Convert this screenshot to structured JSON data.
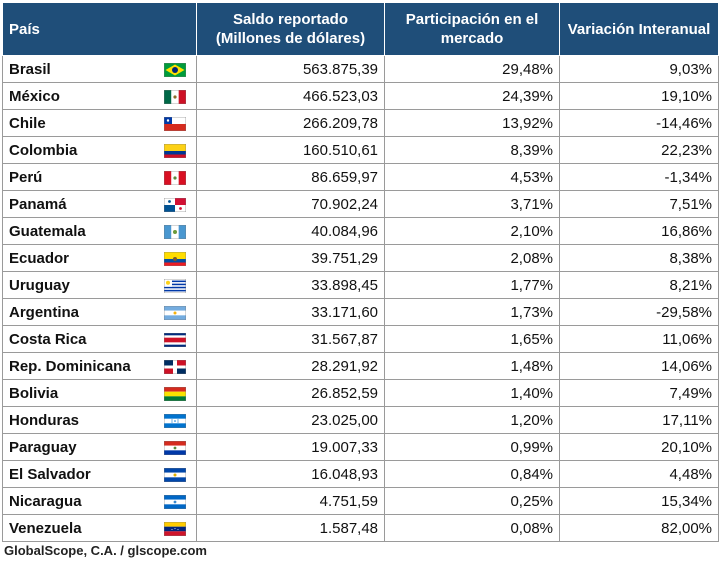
{
  "table": {
    "headers": {
      "country": "País",
      "saldo": "Saldo reportado (Millones de dólares)",
      "participacion": "Participación en el mercado",
      "variacion": "Variación Interanual"
    },
    "rows": [
      {
        "country": "Brasil",
        "flag": "brazil-flag-icon",
        "saldo": "563.875,39",
        "participacion": "29,48%",
        "variacion": "9,03%"
      },
      {
        "country": "México",
        "flag": "mexico-flag-icon",
        "saldo": "466.523,03",
        "participacion": "24,39%",
        "variacion": "19,10%"
      },
      {
        "country": "Chile",
        "flag": "chile-flag-icon",
        "saldo": "266.209,78",
        "participacion": "13,92%",
        "variacion": "-14,46%"
      },
      {
        "country": "Colombia",
        "flag": "colombia-flag-icon",
        "saldo": "160.510,61",
        "participacion": "8,39%",
        "variacion": "22,23%"
      },
      {
        "country": "Perú",
        "flag": "peru-flag-icon",
        "saldo": "86.659,97",
        "participacion": "4,53%",
        "variacion": "-1,34%"
      },
      {
        "country": "Panamá",
        "flag": "panama-flag-icon",
        "saldo": "70.902,24",
        "participacion": "3,71%",
        "variacion": "7,51%"
      },
      {
        "country": "Guatemala",
        "flag": "guatemala-flag-icon",
        "saldo": "40.084,96",
        "participacion": "2,10%",
        "variacion": "16,86%"
      },
      {
        "country": "Ecuador",
        "flag": "ecuador-flag-icon",
        "saldo": "39.751,29",
        "participacion": "2,08%",
        "variacion": "8,38%"
      },
      {
        "country": "Uruguay",
        "flag": "uruguay-flag-icon",
        "saldo": "33.898,45",
        "participacion": "1,77%",
        "variacion": "8,21%"
      },
      {
        "country": "Argentina",
        "flag": "argentina-flag-icon",
        "saldo": "33.171,60",
        "participacion": "1,73%",
        "variacion": "-29,58%"
      },
      {
        "country": "Costa Rica",
        "flag": "costa-rica-flag-icon",
        "saldo": "31.567,87",
        "participacion": "1,65%",
        "variacion": "11,06%"
      },
      {
        "country": "Rep. Dominicana",
        "flag": "dominican-republic-flag-icon",
        "saldo": "28.291,92",
        "participacion": "1,48%",
        "variacion": "14,06%"
      },
      {
        "country": "Bolivia",
        "flag": "bolivia-flag-icon",
        "saldo": "26.852,59",
        "participacion": "1,40%",
        "variacion": "7,49%"
      },
      {
        "country": "Honduras",
        "flag": "honduras-flag-icon",
        "saldo": "23.025,00",
        "participacion": "1,20%",
        "variacion": "17,11%"
      },
      {
        "country": "Paraguay",
        "flag": "paraguay-flag-icon",
        "saldo": "19.007,33",
        "participacion": "0,99%",
        "variacion": "20,10%"
      },
      {
        "country": "El Salvador",
        "flag": "el-salvador-flag-icon",
        "saldo": "16.048,93",
        "participacion": "0,84%",
        "variacion": "4,48%"
      },
      {
        "country": "Nicaragua",
        "flag": "nicaragua-flag-icon",
        "saldo": "4.751,59",
        "participacion": "0,25%",
        "variacion": "15,34%"
      },
      {
        "country": "Venezuela",
        "flag": "venezuela-flag-icon",
        "saldo": "1.587,48",
        "participacion": "0,08%",
        "variacion": "82,00%"
      }
    ]
  },
  "footer": {
    "source": "GlobalScope, C.A. / glscope.com"
  },
  "colors": {
    "header_bg": "#1f4e79",
    "header_text": "#ffffff",
    "border": "#9a9a9a"
  }
}
